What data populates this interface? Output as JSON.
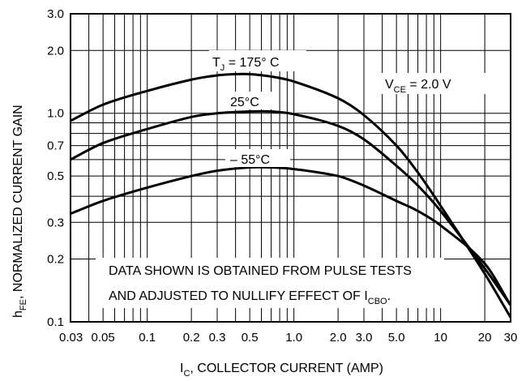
{
  "chart_data": {
    "type": "line",
    "x_scale": "log",
    "y_scale": "log",
    "xlim": [
      0.03,
      30
    ],
    "ylim": [
      0.1,
      3.0
    ],
    "grid": true,
    "x_ticks": [
      0.03,
      0.05,
      0.1,
      0.2,
      0.3,
      0.5,
      1.0,
      2.0,
      3.0,
      5.0,
      10,
      20,
      30
    ],
    "x_tick_labels": [
      "0.03",
      "0.05",
      "0.1",
      "0.2",
      "0.3",
      "0.5",
      "1.0",
      "2.0",
      "3.0",
      "5.0",
      "10",
      "20",
      "30"
    ],
    "y_ticks": [
      0.1,
      0.2,
      0.3,
      0.5,
      0.7,
      1.0,
      2.0,
      3.0
    ],
    "y_tick_labels": [
      "0.1",
      "0.2",
      "0.3",
      "0.5",
      "0.7",
      "1.0",
      "2.0",
      "3.0"
    ],
    "xlabel": {
      "main": "I",
      "sub": "C",
      "rest": ", COLLECTOR CURRENT (AMP)"
    },
    "ylabel": {
      "main": "h",
      "sub": "FE",
      "rest": ", NORMALIZED CURRENT GAIN"
    },
    "series": [
      {
        "name": "T_J = 175° C",
        "x": [
          0.03,
          0.05,
          0.1,
          0.2,
          0.3,
          0.4,
          0.5,
          0.7,
          1.0,
          2.0,
          3.0,
          5.0,
          7.0,
          10,
          20,
          30
        ],
        "y": [
          0.92,
          1.1,
          1.28,
          1.45,
          1.52,
          1.54,
          1.54,
          1.5,
          1.42,
          1.18,
          0.98,
          0.7,
          0.52,
          0.36,
          0.17,
          0.105
        ]
      },
      {
        "name": "25°C",
        "x": [
          0.03,
          0.05,
          0.1,
          0.2,
          0.3,
          0.5,
          0.7,
          1.0,
          2.0,
          3.0,
          5.0,
          7.0,
          10,
          20,
          30
        ],
        "y": [
          0.6,
          0.72,
          0.84,
          0.96,
          1.0,
          1.02,
          1.02,
          0.99,
          0.87,
          0.75,
          0.56,
          0.45,
          0.34,
          0.18,
          0.12
        ]
      },
      {
        "name": "– 55°C",
        "x": [
          0.03,
          0.05,
          0.1,
          0.2,
          0.3,
          0.5,
          0.7,
          1.0,
          2.0,
          3.0,
          5.0,
          7.0,
          10,
          20,
          30
        ],
        "y": [
          0.33,
          0.38,
          0.44,
          0.5,
          0.53,
          0.55,
          0.55,
          0.54,
          0.5,
          0.45,
          0.38,
          0.34,
          0.29,
          0.19,
          0.12
        ]
      }
    ],
    "annotations": {
      "t175": {
        "pre": "T",
        "sub": "J",
        "post": " = 175° C"
      },
      "t25": "25°C",
      "t55": "– 55°C",
      "vce": {
        "pre": "V",
        "sub": "CE",
        "post": " = 2.0 V"
      },
      "note_line1": "DATA SHOWN IS OBTAINED FROM PULSE TESTS",
      "note_line2": {
        "pre": "AND ADJUSTED TO NULLIFY EFFECT OF I",
        "sub": "CBO",
        "post": "."
      }
    }
  }
}
